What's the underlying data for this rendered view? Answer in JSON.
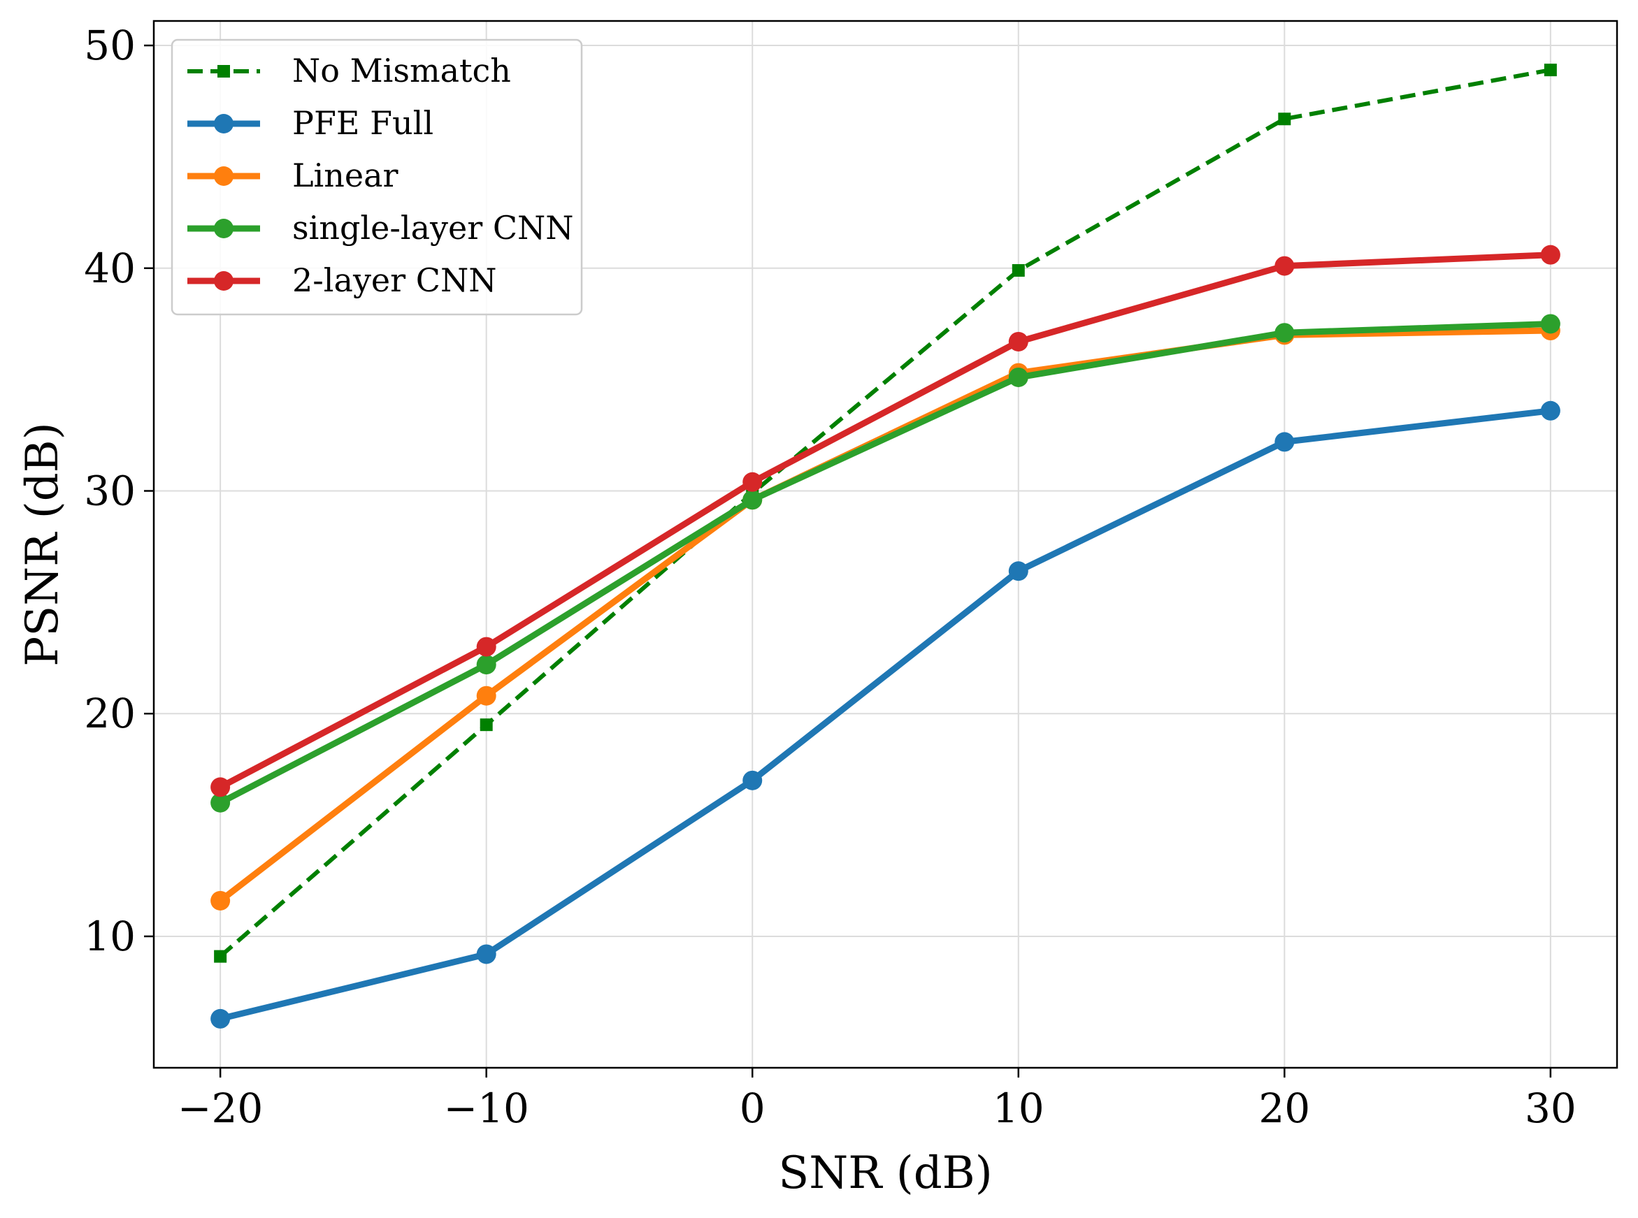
{
  "chart_data": {
    "type": "line",
    "title": "",
    "xlabel": "SNR (dB)",
    "ylabel": "PSNR (dB)",
    "x": [
      -20,
      -10,
      0,
      10,
      20,
      30
    ],
    "xlim": [
      -22.5,
      32.5
    ],
    "ylim": [
      4.1,
      51.1
    ],
    "xticks": [
      {
        "value": -20,
        "label": "−20"
      },
      {
        "value": -10,
        "label": "−10"
      },
      {
        "value": 0,
        "label": "0"
      },
      {
        "value": 10,
        "label": "10"
      },
      {
        "value": 20,
        "label": "20"
      },
      {
        "value": 30,
        "label": "30"
      }
    ],
    "yticks": [
      {
        "value": 10,
        "label": "10"
      },
      {
        "value": 20,
        "label": "20"
      },
      {
        "value": 30,
        "label": "30"
      },
      {
        "value": 40,
        "label": "40"
      },
      {
        "value": 50,
        "label": "50"
      }
    ],
    "grid": true,
    "legend": "top-left",
    "series": [
      {
        "name": "No Mismatch",
        "color": "#008000",
        "style": "dashed",
        "marker": "square",
        "values": [
          9.1,
          19.5,
          29.9,
          39.9,
          46.7,
          48.9
        ]
      },
      {
        "name": "PFE Full",
        "color": "#1f77b4",
        "style": "solid",
        "marker": "circle",
        "values": [
          6.3,
          9.2,
          17.0,
          26.4,
          32.2,
          33.6
        ]
      },
      {
        "name": "Linear",
        "color": "#ff7f0e",
        "style": "solid",
        "marker": "circle",
        "values": [
          11.6,
          20.8,
          29.6,
          35.3,
          37.0,
          37.2
        ]
      },
      {
        "name": "single-layer CNN",
        "color": "#2ca02c",
        "style": "solid",
        "marker": "circle",
        "values": [
          16.0,
          22.2,
          29.6,
          35.1,
          37.1,
          37.5
        ]
      },
      {
        "name": "2-layer CNN",
        "color": "#d62728",
        "style": "solid",
        "marker": "circle",
        "values": [
          16.7,
          23.0,
          30.4,
          36.7,
          40.1,
          40.6
        ]
      }
    ]
  }
}
